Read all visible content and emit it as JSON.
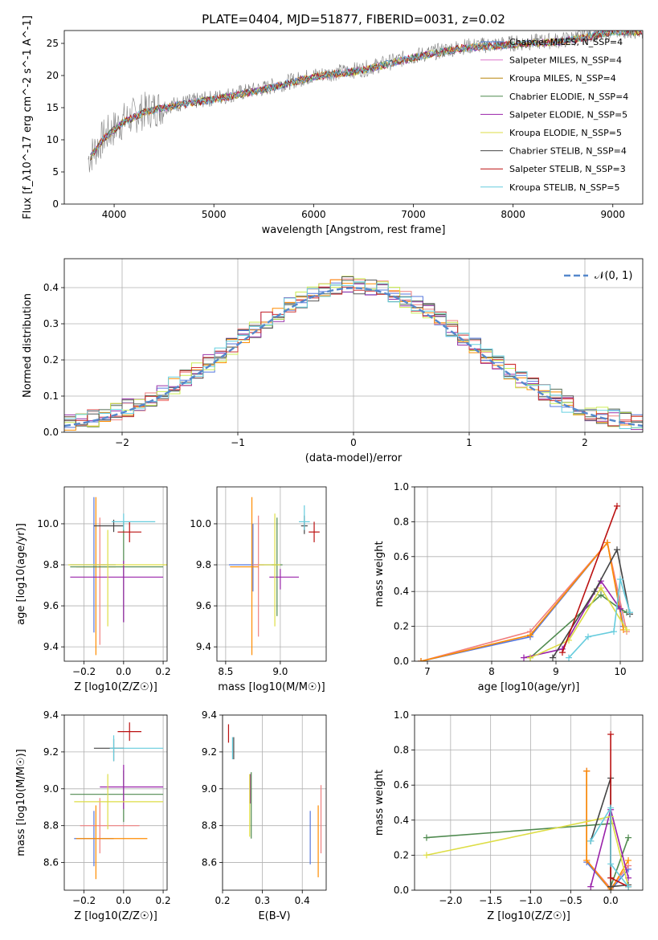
{
  "figure_title": "PLATE=0404, MJD=51877, FIBERID=0031, z=0.02",
  "chart_data": [
    {
      "id": "spectrum",
      "type": "line",
      "xlabel": "wavelength [Angstrom, rest frame]",
      "ylabel": "Flux [f_λ10^-17 erg cm^-2 s^-1 A^-1]",
      "xlim": [
        3500,
        9300
      ],
      "ylim": [
        0,
        27
      ],
      "xticks": [
        "4000",
        "5000",
        "6000",
        "7000",
        "8000",
        "9000"
      ],
      "yticks": [
        "0",
        "5",
        "10",
        "15",
        "20",
        "25"
      ],
      "observed_color": "#808080",
      "continuum_points": [
        [
          3740,
          7
        ],
        [
          3900,
          10.5
        ],
        [
          4100,
          13
        ],
        [
          4300,
          14.5
        ],
        [
          4600,
          15.5
        ],
        [
          5000,
          16.5
        ],
        [
          5500,
          18
        ],
        [
          6000,
          20
        ],
        [
          6500,
          21
        ],
        [
          7000,
          23
        ],
        [
          7500,
          24.5
        ],
        [
          8000,
          25
        ],
        [
          8500,
          25.5
        ],
        [
          9000,
          27
        ]
      ],
      "legend": [
        {
          "text": "Chabrier MILES, N_SSP=4",
          "color": "#4477cc"
        },
        {
          "text": "Salpeter MILES, N_SSP=4",
          "color": "#dd77cc"
        },
        {
          "text": "Kroupa MILES, N_SSP=4",
          "color": "#b8860b"
        },
        {
          "text": "Chabrier ELODIE, N_SSP=4",
          "color": "#4f8a4f"
        },
        {
          "text": "Salpeter ELODIE, N_SSP=5",
          "color": "#9922aa"
        },
        {
          "text": "Kroupa ELODIE, N_SSP=5",
          "color": "#dddd44"
        },
        {
          "text": "Chabrier STELIB, N_SSP=4",
          "color": "#444444"
        },
        {
          "text": "Salpeter STELIB, N_SSP=3",
          "color": "#bb1111"
        },
        {
          "text": "Kroupa STELIB, N_SSP=5",
          "color": "#66ccdd"
        }
      ],
      "legend_pos": "upper-right"
    },
    {
      "id": "residuals",
      "type": "bar",
      "xlabel": "(data-model)/error",
      "ylabel": "Normed distribution",
      "xlim": [
        -2.5,
        2.5
      ],
      "ylim": [
        0,
        0.48
      ],
      "xticks": [
        "−2",
        "−1",
        "0",
        "1",
        "2"
      ],
      "yticks": [
        "0.0",
        "0.1",
        "0.2",
        "0.3",
        "0.4"
      ],
      "grid": true,
      "bin_width": 0.1,
      "reference_curve": {
        "label": "𝒩(0, 1)",
        "color": "#5588cc",
        "style": "dashed"
      },
      "histogram_colors": [
        "#5577dd",
        "#f08080",
        "#ff8c00",
        "#556b55",
        "#9933aa",
        "#ccee55",
        "#555555",
        "#cc3333",
        "#66d0e0"
      ],
      "legend_pos": "upper-right"
    },
    {
      "id": "z-age",
      "type": "scatter",
      "xlabel": "Z [log10(Z/Z☉)]",
      "ylabel": "age  [log10(age/yr)]",
      "xlim": [
        -0.3,
        0.22
      ],
      "ylim": [
        9.33,
        10.18
      ],
      "xticks": [
        "−0.2",
        "0.0",
        "0.2"
      ],
      "yticks": [
        "9.4",
        "9.6",
        "9.8",
        "10.0"
      ],
      "grid": true,
      "points": [
        {
          "x": -0.15,
          "y": 9.8,
          "xerr": [
            0.12,
            0.11
          ],
          "yerr": [
            0.33,
            0.33
          ],
          "color": "#5577dd"
        },
        {
          "x": -0.12,
          "y": 9.8,
          "xerr": [
            0.03,
            0.03
          ],
          "yerr": [
            0.39,
            0.23
          ],
          "color": "#f08080"
        },
        {
          "x": -0.14,
          "y": 9.79,
          "xerr": [
            0.1,
            0.1
          ],
          "yerr": [
            0.43,
            0.34
          ],
          "color": "#ff8c00"
        },
        {
          "x": 0.0,
          "y": 9.79,
          "xerr": [
            0.27,
            0.2
          ],
          "yerr": [
            0.27,
            0.22
          ],
          "color": "#4f8a4f"
        },
        {
          "x": 0.0,
          "y": 9.74,
          "xerr": [
            0.27,
            0.2
          ],
          "yerr": [
            0.22,
            0.08
          ],
          "color": "#9922aa"
        },
        {
          "x": -0.08,
          "y": 9.8,
          "xerr": [
            0.2,
            0.3
          ],
          "yerr": [
            0.3,
            0.17
          ],
          "color": "#dddd44"
        },
        {
          "x": -0.05,
          "y": 9.99,
          "xerr": [
            0.1,
            0.05
          ],
          "yerr": [
            0.03,
            0.03
          ],
          "color": "#444444"
        },
        {
          "x": 0.03,
          "y": 9.96,
          "xerr": [
            0.06,
            0.06
          ],
          "yerr": [
            0.05,
            0.05
          ],
          "color": "#bb1111"
        },
        {
          "x": 0.0,
          "y": 10.01,
          "xerr": [
            0.06,
            0.16
          ],
          "yerr": [
            0.04,
            0.04
          ],
          "color": "#66ccdd"
        }
      ]
    },
    {
      "id": "mass-age",
      "type": "scatter",
      "xlabel": "mass [log10(M/M☉)]",
      "ylabel": "",
      "xlim": [
        8.42,
        9.42
      ],
      "ylim": [
        9.33,
        10.18
      ],
      "xticks": [
        "8.5",
        "9.0"
      ],
      "yticks": [
        "9.4",
        "9.6",
        "9.8",
        "10.0"
      ],
      "grid": true,
      "points": [
        {
          "x": 8.75,
          "y": 9.8,
          "xerr": [
            0.22,
            0.22
          ],
          "yerr": [
            0.13,
            0.2
          ],
          "color": "#5577dd"
        },
        {
          "x": 8.8,
          "y": 9.8,
          "xerr": [
            0.05,
            0.05
          ],
          "yerr": [
            0.35,
            0.24
          ],
          "color": "#f08080"
        },
        {
          "x": 8.74,
          "y": 9.79,
          "xerr": [
            0.2,
            0.06
          ],
          "yerr": [
            0.43,
            0.34
          ],
          "color": "#ff8c00"
        },
        {
          "x": 8.97,
          "y": 9.8,
          "xerr": [
            0.05,
            0.05
          ],
          "yerr": [
            0.25,
            0.23
          ],
          "color": "#4f8a4f"
        },
        {
          "x": 9.0,
          "y": 9.74,
          "xerr": [
            0.1,
            0.17
          ],
          "yerr": [
            0.06,
            0.04
          ],
          "color": "#9922aa"
        },
        {
          "x": 8.95,
          "y": 9.8,
          "xerr": [
            0.15,
            0.05
          ],
          "yerr": [
            0.3,
            0.25
          ],
          "color": "#dddd44"
        },
        {
          "x": 9.22,
          "y": 9.99,
          "xerr": [
            0.03,
            0.03
          ],
          "yerr": [
            0.04,
            0.05
          ],
          "color": "#444444"
        },
        {
          "x": 9.31,
          "y": 9.96,
          "xerr": [
            0.05,
            0.05
          ],
          "yerr": [
            0.05,
            0.05
          ],
          "color": "#bb1111"
        },
        {
          "x": 9.22,
          "y": 10.01,
          "xerr": [
            0.05,
            0.05
          ],
          "yerr": [
            0.04,
            0.08
          ],
          "color": "#66ccdd"
        }
      ]
    },
    {
      "id": "age-weight",
      "type": "line",
      "xlabel": "age  [log10(age/yr)]",
      "ylabel": "mass weight",
      "xlim": [
        6.8,
        10.35
      ],
      "ylim": [
        0,
        1.0
      ],
      "xticks": [
        "7",
        "8",
        "9",
        "10"
      ],
      "yticks": [
        "0.0",
        "0.2",
        "0.4",
        "0.6",
        "0.8",
        "1.0"
      ],
      "grid": true,
      "series": [
        {
          "color": "#5577dd",
          "points": [
            [
              6.9,
              0.0
            ],
            [
              8.6,
              0.14
            ],
            [
              9.8,
              0.68
            ],
            [
              10.05,
              0.2
            ]
          ]
        },
        {
          "color": "#f08080",
          "points": [
            [
              6.9,
              0.0
            ],
            [
              8.6,
              0.17
            ],
            [
              9.8,
              0.68
            ],
            [
              10.1,
              0.17
            ]
          ]
        },
        {
          "color": "#ff8c00",
          "points": [
            [
              6.9,
              0.0
            ],
            [
              8.6,
              0.15
            ],
            [
              9.8,
              0.68
            ],
            [
              10.05,
              0.18
            ]
          ]
        },
        {
          "color": "#4f8a4f",
          "points": [
            [
              8.6,
              0.02
            ],
            [
              9.7,
              0.38
            ],
            [
              10.0,
              0.3
            ],
            [
              10.1,
              0.28
            ]
          ]
        },
        {
          "color": "#9922aa",
          "points": [
            [
              8.5,
              0.02
            ],
            [
              9.1,
              0.07
            ],
            [
              9.7,
              0.46
            ],
            [
              10.0,
              0.3
            ]
          ]
        },
        {
          "color": "#dddd44",
          "points": [
            [
              8.6,
              0.02
            ],
            [
              9.2,
              0.12
            ],
            [
              9.7,
              0.42
            ],
            [
              10.1,
              0.18
            ]
          ]
        },
        {
          "color": "#444444",
          "points": [
            [
              8.95,
              0.02
            ],
            [
              9.6,
              0.4
            ],
            [
              9.95,
              0.64
            ],
            [
              10.15,
              0.27
            ]
          ]
        },
        {
          "color": "#bb1111",
          "points": [
            [
              9.1,
              0.05
            ],
            [
              9.95,
              0.89
            ]
          ]
        },
        {
          "color": "#66ccdd",
          "points": [
            [
              9.2,
              0.02
            ],
            [
              9.5,
              0.14
            ],
            [
              9.9,
              0.17
            ],
            [
              10.0,
              0.47
            ],
            [
              10.15,
              0.28
            ]
          ]
        }
      ]
    },
    {
      "id": "ebv-mass",
      "type": "scatter",
      "xlabel": "E(B-V)",
      "ylabel": "",
      "xlim": [
        0.2,
        0.46
      ],
      "ylim": [
        8.45,
        9.4
      ],
      "xticks": [
        "0.2",
        "0.3",
        "0.4"
      ],
      "yticks": [
        "8.6",
        "8.8",
        "9.0",
        "9.2",
        "9.4"
      ],
      "grid": true,
      "points": [
        {
          "x": 0.215,
          "y": 9.3,
          "yerr": [
            0.05,
            0.05
          ],
          "color": "#bb1111"
        },
        {
          "x": 0.225,
          "y": 9.22,
          "yerr": [
            0.06,
            0.06
          ],
          "color": "#66ccdd"
        },
        {
          "x": 0.228,
          "y": 9.22,
          "yerr": [
            0.06,
            0.06
          ],
          "color": "#444444"
        },
        {
          "x": 0.27,
          "y": 9.0,
          "yerr": [
            0.08,
            0.08
          ],
          "color": "#9922aa"
        },
        {
          "x": 0.268,
          "y": 8.92,
          "yerr": [
            0.18,
            0.16
          ],
          "color": "#dddd44"
        },
        {
          "x": 0.272,
          "y": 8.91,
          "yerr": [
            0.18,
            0.18
          ],
          "color": "#4f8a4f"
        },
        {
          "x": 0.42,
          "y": 8.73,
          "yerr": [
            0.14,
            0.15
          ],
          "color": "#5577dd"
        },
        {
          "x": 0.44,
          "y": 8.73,
          "yerr": [
            0.21,
            0.18
          ],
          "color": "#ff8c00"
        },
        {
          "x": 0.447,
          "y": 8.81,
          "yerr": [
            0.16,
            0.21
          ],
          "color": "#f08080"
        }
      ]
    },
    {
      "id": "z-mass",
      "type": "scatter",
      "xlabel": "Z [log10(Z/Z☉)]",
      "ylabel": "mass [log10(M/M☉)]",
      "xlim": [
        -0.3,
        0.22
      ],
      "ylim": [
        8.45,
        9.4
      ],
      "xticks": [
        "−0.2",
        "0.0",
        "0.2"
      ],
      "yticks": [
        "8.6",
        "8.8",
        "9.0",
        "9.2",
        "9.4"
      ],
      "grid": true,
      "points": [
        {
          "x": -0.15,
          "y": 8.73,
          "xerr": [
            0.1,
            0.1
          ],
          "yerr": [
            0.15,
            0.15
          ],
          "color": "#5577dd"
        },
        {
          "x": -0.12,
          "y": 8.8,
          "xerr": [
            0.1,
            0.2
          ],
          "yerr": [
            0.15,
            0.15
          ],
          "color": "#f08080"
        },
        {
          "x": -0.14,
          "y": 8.73,
          "xerr": [
            0.1,
            0.26
          ],
          "yerr": [
            0.22,
            0.18
          ],
          "color": "#ff8c00"
        },
        {
          "x": 0.0,
          "y": 8.97,
          "xerr": [
            0.27,
            0.2
          ],
          "yerr": [
            0.15,
            0.13
          ],
          "color": "#4f8a4f"
        },
        {
          "x": 0.0,
          "y": 9.01,
          "xerr": [
            0.12,
            0.2
          ],
          "yerr": [
            0.12,
            0.12
          ],
          "color": "#9922aa"
        },
        {
          "x": -0.08,
          "y": 8.93,
          "xerr": [
            0.17,
            0.28
          ],
          "yerr": [
            0.15,
            0.15
          ],
          "color": "#dddd44"
        },
        {
          "x": -0.05,
          "y": 9.22,
          "xerr": [
            0.1,
            0.05
          ],
          "yerr": [
            0.07,
            0.05
          ],
          "color": "#444444"
        },
        {
          "x": 0.03,
          "y": 9.31,
          "xerr": [
            0.06,
            0.06
          ],
          "yerr": [
            0.05,
            0.05
          ],
          "color": "#bb1111"
        },
        {
          "x": -0.05,
          "y": 9.22,
          "xerr": [
            0.02,
            0.25
          ],
          "yerr": [
            0.07,
            0.07
          ],
          "color": "#66ccdd"
        }
      ]
    },
    {
      "id": "z-weight",
      "type": "line",
      "xlabel": "Z [log10(Z/Z☉)]",
      "ylabel": "mass weight",
      "xlim": [
        -2.45,
        0.4
      ],
      "ylim": [
        0,
        1.0
      ],
      "xticks": [
        "−2.0",
        "−1.5",
        "−1.0",
        "−0.5",
        "0.0"
      ],
      "yticks": [
        "0.0",
        "0.2",
        "0.4",
        "0.6",
        "0.8",
        "1.0"
      ],
      "grid": true,
      "series": [
        {
          "color": "#5577dd",
          "points": [
            [
              -0.3,
              0.68
            ],
            [
              -0.3,
              0.16
            ],
            [
              0.0,
              0.0
            ],
            [
              0.22,
              0.12
            ]
          ]
        },
        {
          "color": "#f08080",
          "points": [
            [
              -0.3,
              0.68
            ],
            [
              -0.3,
              0.17
            ],
            [
              0.0,
              0.01
            ],
            [
              0.22,
              0.14
            ]
          ]
        },
        {
          "color": "#ff8c00",
          "points": [
            [
              -0.3,
              0.68
            ],
            [
              -0.3,
              0.17
            ],
            [
              0.0,
              0.0
            ],
            [
              0.22,
              0.17
            ]
          ]
        },
        {
          "color": "#4f8a4f",
          "points": [
            [
              -2.3,
              0.3
            ],
            [
              0.0,
              0.38
            ],
            [
              0.0,
              0.02
            ],
            [
              0.22,
              0.3
            ]
          ]
        },
        {
          "color": "#9922aa",
          "points": [
            [
              -0.25,
              0.02
            ],
            [
              0.0,
              0.46
            ],
            [
              0.22,
              0.07
            ]
          ]
        },
        {
          "color": "#dddd44",
          "points": [
            [
              -2.3,
              0.2
            ],
            [
              0.0,
              0.42
            ],
            [
              0.22,
              0.02
            ]
          ]
        },
        {
          "color": "#444444",
          "points": [
            [
              -0.25,
              0.28
            ],
            [
              0.0,
              0.64
            ],
            [
              0.0,
              0.02
            ],
            [
              0.22,
              0.03
            ]
          ]
        },
        {
          "color": "#bb1111",
          "points": [
            [
              0.0,
              0.89
            ],
            [
              0.0,
              0.07
            ],
            [
              0.22,
              0.02
            ]
          ]
        },
        {
          "color": "#66ccdd",
          "points": [
            [
              -0.25,
              0.28
            ],
            [
              0.0,
              0.47
            ],
            [
              0.0,
              0.15
            ],
            [
              0.22,
              0.02
            ]
          ]
        }
      ]
    }
  ]
}
